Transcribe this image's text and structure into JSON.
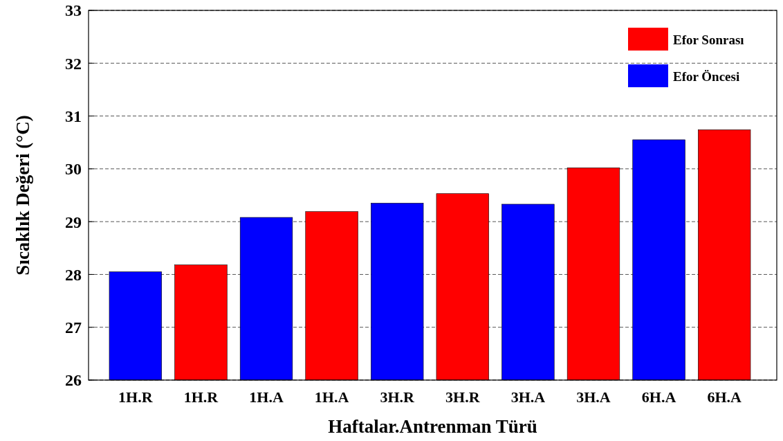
{
  "chart_data": {
    "type": "bar",
    "xlabel": "Haftalar.Antrenman Türü",
    "ylabel": "Sıcaklık Değeri (°C)",
    "categories": [
      "1H.R",
      "1H.R",
      "1H.A",
      "1H.A",
      "3H.R",
      "3H.R",
      "3H.A",
      "3H.A",
      "6H.A",
      "6H.A"
    ],
    "series": [
      {
        "name": "Efor Sonrası",
        "color": "#ff0000",
        "values": [
          null,
          28.18,
          null,
          29.19,
          null,
          29.53,
          null,
          30.02,
          null,
          30.74
        ]
      },
      {
        "name": "Efor Öncesi",
        "color": "#0000ff",
        "values": [
          28.05,
          null,
          29.08,
          null,
          29.35,
          null,
          29.33,
          null,
          30.55,
          null
        ]
      }
    ],
    "ylim": [
      26,
      33
    ],
    "yticks": [
      26,
      27,
      28,
      29,
      30,
      31,
      32,
      33
    ],
    "grid": "y",
    "legend": "top right"
  }
}
